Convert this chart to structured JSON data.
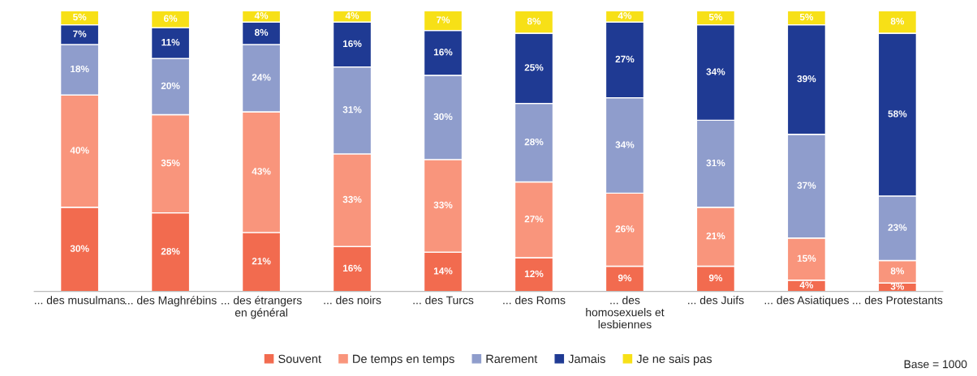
{
  "chart_data": {
    "type": "bar",
    "stacked": true,
    "legend": "bottom",
    "grid": false,
    "categories": [
      "... des musulmans",
      "... des Maghrébins",
      "... des étrangers\nen général",
      "... des noirs",
      "... des Turcs",
      "... des Roms",
      "... des\nhomosexuels et\nlesbiennes",
      "... des Juifs",
      "... des Asiatiques",
      "... des Protestants"
    ],
    "series": [
      {
        "name": "Souvent",
        "color": "#f26b4f",
        "values": [
          30,
          28,
          21,
          16,
          14,
          12,
          9,
          9,
          4,
          3
        ],
        "value_labels": [
          "30%",
          "28%",
          "21%",
          "16%",
          "14%",
          "12%",
          "9%",
          "9%",
          "4%",
          "3%"
        ]
      },
      {
        "name": "De temps en temps",
        "color": "#f9957c",
        "values": [
          40,
          35,
          43,
          33,
          33,
          27,
          26,
          21,
          15,
          8
        ],
        "value_labels": [
          "40%",
          "35%",
          "43%",
          "33%",
          "33%",
          "27%",
          "26%",
          "21%",
          "15%",
          "8%"
        ]
      },
      {
        "name": "Rarement",
        "color": "#8f9dcc",
        "values": [
          18,
          20,
          24,
          31,
          30,
          28,
          34,
          31,
          37,
          23
        ],
        "value_labels": [
          "18%",
          "20%",
          "24%",
          "31%",
          "30%",
          "28%",
          "34%",
          "31%",
          "37%",
          "23%"
        ]
      },
      {
        "name": "Jamais",
        "color": "#1f3a93",
        "values": [
          7,
          11,
          8,
          16,
          16,
          25,
          27,
          34,
          39,
          58
        ],
        "value_labels": [
          "7%",
          "11%",
          "8%",
          "16%",
          "16%",
          "25%",
          "27%",
          "34%",
          "39%",
          "58%"
        ]
      },
      {
        "name": "Je ne sais pas",
        "color": "#f7e017",
        "values": [
          5,
          6,
          4,
          4,
          7,
          8,
          4,
          5,
          5,
          8
        ],
        "value_labels": [
          "5%",
          "6%",
          "4%",
          "4%",
          "7%",
          "8%",
          "4%",
          "5%",
          "5%",
          "8%"
        ]
      }
    ],
    "annotations": [
      "Base = 1000"
    ]
  }
}
